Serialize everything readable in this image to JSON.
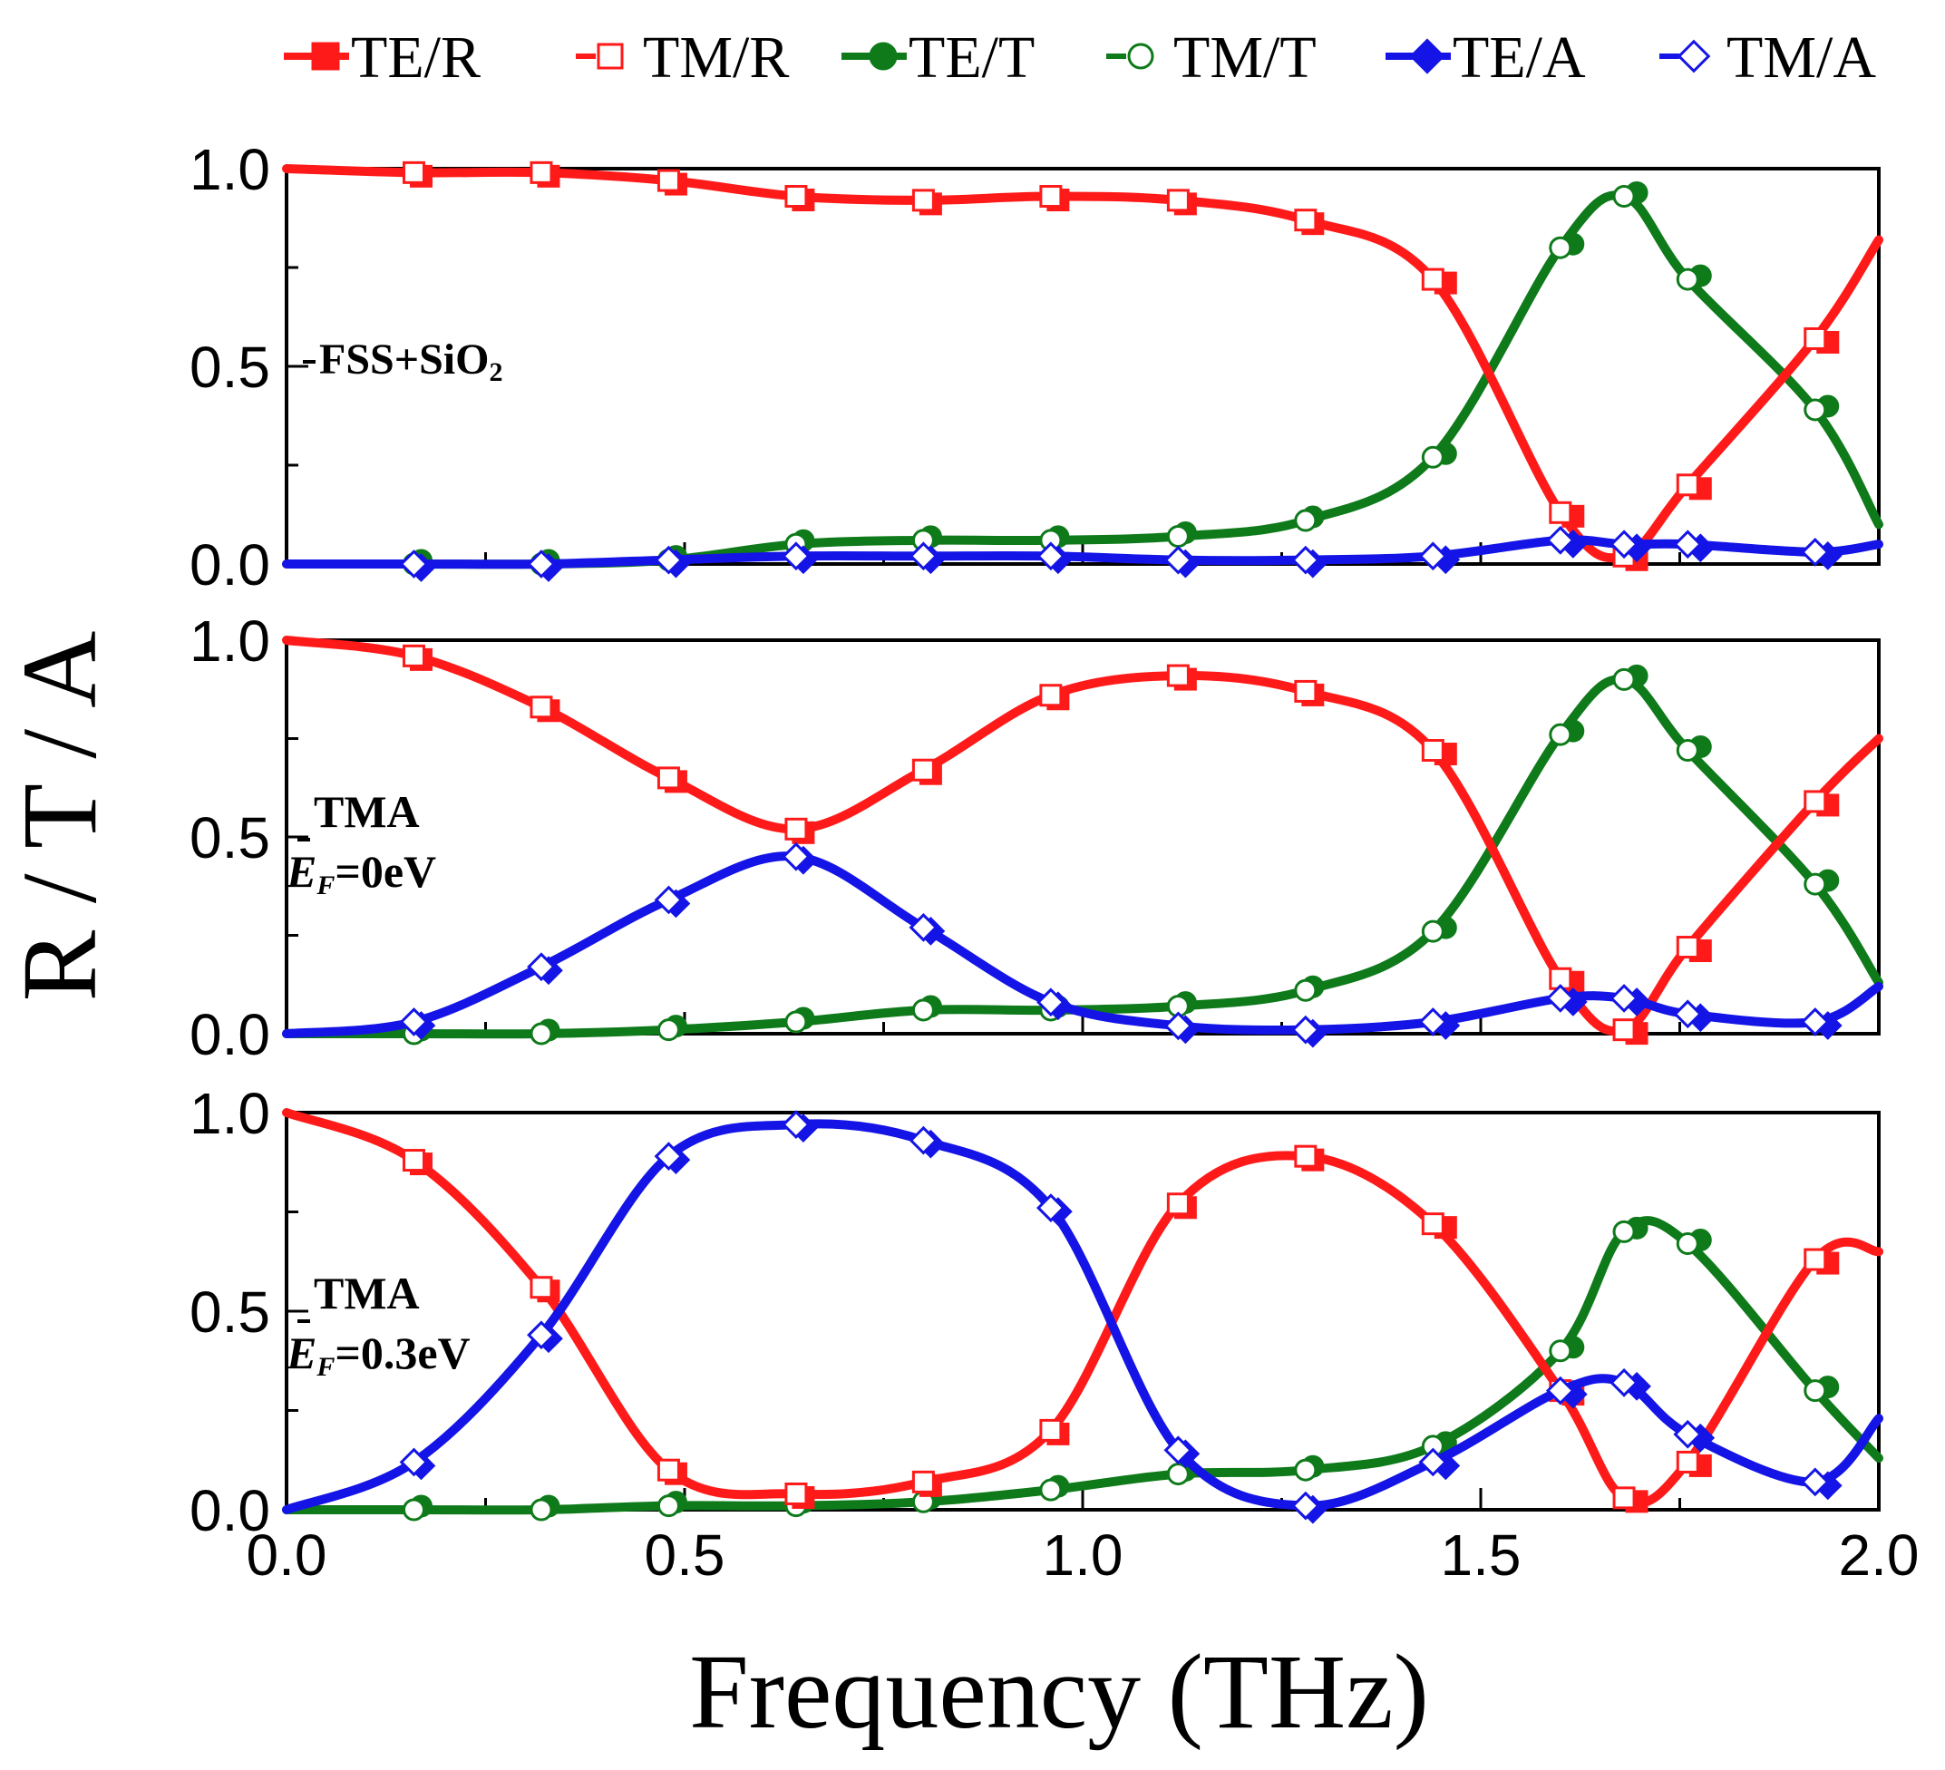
{
  "chart_data": {
    "type": "line",
    "xlabel": "Frequency (THz)",
    "ylabel": "R / T / A",
    "xlim": [
      0,
      2
    ],
    "ylim": [
      0,
      1
    ],
    "x_ticks": [
      "0.0",
      "0.5",
      "1.0",
      "1.5",
      "2.0"
    ],
    "y_ticks": [
      "0.0",
      "0.5",
      "1.0"
    ],
    "legend": [
      {
        "label": "TE/R",
        "color": "#ff1a1a",
        "marker": "square-filled"
      },
      {
        "label": "TM/R",
        "color": "#ff1a1a",
        "marker": "square-open"
      },
      {
        "label": "TE/T",
        "color": "#0e7a1a",
        "marker": "circle-filled"
      },
      {
        "label": "TM/T",
        "color": "#0e7a1a",
        "marker": "circle-open"
      },
      {
        "label": "TE/A",
        "color": "#1414e6",
        "marker": "diamond-filled"
      },
      {
        "label": "TM/A",
        "color": "#1414e6",
        "marker": "diamond-open"
      }
    ],
    "x": [
      0.0,
      0.16,
      0.32,
      0.48,
      0.64,
      0.8,
      0.96,
      1.12,
      1.28,
      1.44,
      1.6,
      1.68,
      1.76,
      1.92,
      2.0
    ],
    "panels": [
      {
        "annotation": [
          "FSS+SiO",
          "2"
        ],
        "annotation_type": "fss",
        "series": {
          "R": [
            1.0,
            0.99,
            0.99,
            0.97,
            0.93,
            0.92,
            0.93,
            0.92,
            0.87,
            0.72,
            0.13,
            0.02,
            0.2,
            0.57,
            0.82
          ],
          "T": [
            0.0,
            0.0,
            0.0,
            0.01,
            0.05,
            0.06,
            0.06,
            0.07,
            0.11,
            0.27,
            0.8,
            0.93,
            0.72,
            0.39,
            0.1
          ],
          "A": [
            0.0,
            0.0,
            0.0,
            0.01,
            0.02,
            0.02,
            0.02,
            0.01,
            0.01,
            0.02,
            0.06,
            0.05,
            0.05,
            0.03,
            0.05
          ]
        }
      },
      {
        "annotation": [
          "TMA",
          "E",
          "F",
          "=0eV"
        ],
        "annotation_type": "tma",
        "series": {
          "R": [
            1.0,
            0.96,
            0.83,
            0.65,
            0.52,
            0.67,
            0.86,
            0.91,
            0.87,
            0.72,
            0.14,
            0.01,
            0.22,
            0.59,
            0.75
          ],
          "T": [
            0.0,
            0.0,
            0.0,
            0.01,
            0.03,
            0.06,
            0.06,
            0.07,
            0.11,
            0.26,
            0.76,
            0.9,
            0.72,
            0.38,
            0.13
          ],
          "A": [
            0.0,
            0.03,
            0.17,
            0.34,
            0.45,
            0.27,
            0.08,
            0.02,
            0.01,
            0.03,
            0.09,
            0.09,
            0.05,
            0.03,
            0.12
          ]
        }
      },
      {
        "annotation": [
          "TMA",
          "E",
          "F",
          "=0.3eV"
        ],
        "annotation_type": "tma",
        "series": {
          "R": [
            1.0,
            0.88,
            0.56,
            0.1,
            0.04,
            0.07,
            0.2,
            0.77,
            0.89,
            0.72,
            0.3,
            0.03,
            0.12,
            0.63,
            0.65
          ],
          "T": [
            0.0,
            0.0,
            0.0,
            0.01,
            0.01,
            0.02,
            0.05,
            0.09,
            0.1,
            0.16,
            0.4,
            0.7,
            0.67,
            0.3,
            0.13
          ],
          "A": [
            0.0,
            0.12,
            0.44,
            0.89,
            0.97,
            0.93,
            0.76,
            0.15,
            0.01,
            0.12,
            0.3,
            0.32,
            0.19,
            0.07,
            0.23
          ]
        }
      }
    ]
  }
}
